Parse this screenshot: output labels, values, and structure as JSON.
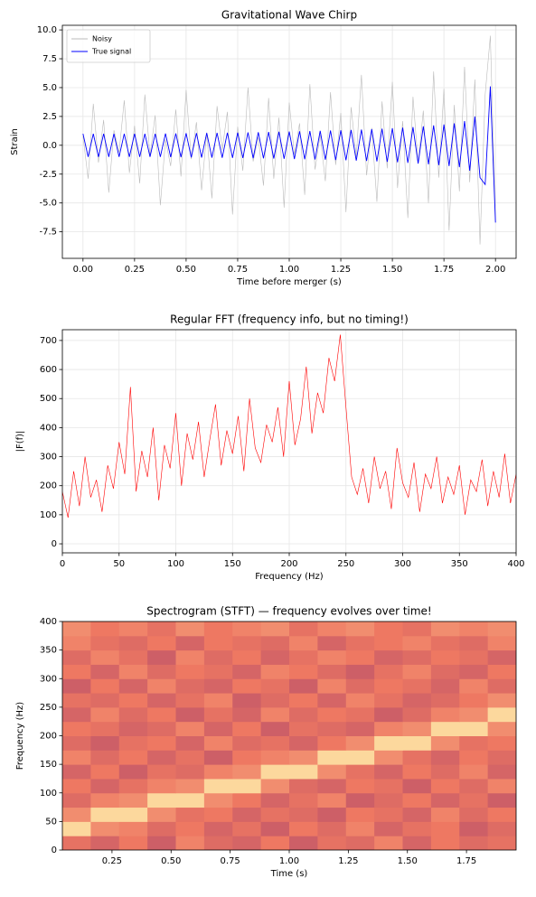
{
  "chart_data": [
    {
      "type": "line",
      "title": "Gravitational Wave Chirp",
      "xlabel": "Time before merger (s)",
      "ylabel": "Strain",
      "x": [
        0,
        0.025,
        0.05,
        0.075,
        0.1,
        0.125,
        0.15,
        0.175,
        0.2,
        0.225,
        0.25,
        0.275,
        0.3,
        0.325,
        0.35,
        0.375,
        0.4,
        0.425,
        0.45,
        0.475,
        0.5,
        0.525,
        0.55,
        0.575,
        0.6,
        0.625,
        0.65,
        0.675,
        0.7,
        0.725,
        0.75,
        0.775,
        0.8,
        0.825,
        0.85,
        0.875,
        0.9,
        0.925,
        0.95,
        0.975,
        1,
        1.025,
        1.05,
        1.075,
        1.1,
        1.125,
        1.15,
        1.175,
        1.2,
        1.225,
        1.25,
        1.275,
        1.3,
        1.325,
        1.35,
        1.375,
        1.4,
        1.425,
        1.45,
        1.475,
        1.5,
        1.525,
        1.55,
        1.575,
        1.6,
        1.625,
        1.65,
        1.675,
        1.7,
        1.725,
        1.75,
        1.775,
        1.8,
        1.825,
        1.85,
        1.875,
        1.9,
        1.925,
        1.95,
        1.975,
        2
      ],
      "series": [
        {
          "name": "Noisy",
          "color": "#bbbbbb",
          "values": [
            0.8,
            -2.9,
            3.6,
            -1.5,
            2.2,
            -4.1,
            1.3,
            -0.6,
            3.9,
            -2.4,
            1.7,
            -3.3,
            4.4,
            -0.9,
            2.6,
            -5.2,
            0.5,
            -1.8,
            3.1,
            -2.7,
            4.8,
            -1.2,
            2.0,
            -3.9,
            1.1,
            -4.6,
            3.4,
            -0.4,
            2.9,
            -6.0,
            1.6,
            -2.2,
            5.0,
            -1.4,
            0.7,
            -3.5,
            4.1,
            -2.9,
            2.4,
            -5.4,
            3.7,
            -0.8,
            1.9,
            -4.3,
            5.3,
            -2.1,
            0.9,
            -3.1,
            4.6,
            -1.7,
            2.8,
            -5.8,
            3.3,
            -1.0,
            6.1,
            -2.6,
            1.5,
            -4.9,
            3.8,
            -2.0,
            5.5,
            -3.7,
            2.1,
            -6.3,
            4.2,
            -1.6,
            3.0,
            -5.0,
            6.4,
            -2.8,
            4.9,
            -7.4,
            3.5,
            -4.0,
            6.8,
            -3.2,
            5.7,
            -8.6,
            4.4,
            9.5,
            -6.6
          ]
        },
        {
          "name": "True signal",
          "color": "#0000ff",
          "values": [
            1.0,
            -1.0,
            1.0,
            -1.0,
            1.0,
            -1.0,
            1.0,
            -1.0,
            1.0,
            -1.0,
            1.0,
            -1.0,
            1.0,
            -1.0,
            1.0,
            -1.0,
            1.02,
            -1.02,
            1.03,
            -1.03,
            1.05,
            -1.05,
            1.06,
            -1.06,
            1.07,
            -1.07,
            1.08,
            -1.08,
            1.09,
            -1.09,
            1.1,
            -1.1,
            1.12,
            -1.12,
            1.13,
            -1.13,
            1.15,
            -1.15,
            1.17,
            -1.17,
            1.19,
            -1.19,
            1.21,
            -1.21,
            1.23,
            -1.23,
            1.25,
            -1.25,
            1.28,
            -1.28,
            1.3,
            -1.3,
            1.33,
            -1.33,
            1.36,
            -1.36,
            1.4,
            -1.4,
            1.44,
            -1.44,
            1.48,
            -1.48,
            1.53,
            -1.53,
            1.58,
            -1.58,
            1.65,
            -1.65,
            1.72,
            -1.72,
            1.8,
            -1.8,
            1.9,
            -1.9,
            2.1,
            -2.2,
            2.5,
            -2.8,
            -3.4,
            5.1,
            -6.7
          ]
        }
      ],
      "xlim": [
        -0.1,
        2.1
      ],
      "ylim": [
        -9.8,
        10.4
      ],
      "xticks": [
        {
          "value": 0,
          "label": "0.00"
        },
        0.25,
        {
          "value": 0.5,
          "label": "0.50"
        },
        0.75,
        {
          "value": 1,
          "label": "1.00"
        },
        1.25,
        {
          "value": 1.5,
          "label": "1.50"
        },
        1.75,
        {
          "value": 2,
          "label": "2.00"
        }
      ],
      "yticks": [
        -7.5,
        {
          "value": -5,
          "label": "-5.0"
        },
        -2.5,
        {
          "value": 0,
          "label": "0.0"
        },
        2.5,
        {
          "value": 5,
          "label": "5.0"
        },
        7.5,
        {
          "value": 10,
          "label": "10.0"
        }
      ],
      "grid": true,
      "legend": "upper left"
    },
    {
      "type": "line",
      "title": "Regular FFT (frequency info, but no timing!)",
      "xlabel": "Frequency (Hz)",
      "ylabel": "|F(f)|",
      "x": [
        0,
        5,
        10,
        15,
        20,
        25,
        30,
        35,
        40,
        45,
        50,
        55,
        60,
        65,
        70,
        75,
        80,
        85,
        90,
        95,
        100,
        105,
        110,
        115,
        120,
        125,
        130,
        135,
        140,
        145,
        150,
        155,
        160,
        165,
        170,
        175,
        180,
        185,
        190,
        195,
        200,
        205,
        210,
        215,
        220,
        225,
        230,
        235,
        240,
        245,
        250,
        255,
        260,
        265,
        270,
        275,
        280,
        285,
        290,
        295,
        300,
        305,
        310,
        315,
        320,
        325,
        330,
        335,
        340,
        345,
        350,
        355,
        360,
        365,
        370,
        375,
        380,
        385,
        390,
        395,
        400
      ],
      "values": [
        180,
        90,
        250,
        130,
        300,
        160,
        220,
        110,
        270,
        190,
        350,
        240,
        540,
        180,
        320,
        230,
        400,
        150,
        340,
        260,
        450,
        200,
        380,
        290,
        420,
        230,
        360,
        480,
        270,
        390,
        310,
        440,
        250,
        500,
        330,
        280,
        410,
        350,
        470,
        300,
        560,
        340,
        430,
        610,
        380,
        520,
        450,
        640,
        560,
        720,
        470,
        230,
        170,
        260,
        140,
        300,
        190,
        250,
        120,
        330,
        210,
        160,
        280,
        110,
        240,
        190,
        300,
        140,
        230,
        170,
        270,
        100,
        220,
        180,
        290,
        130,
        250,
        160,
        310,
        140,
        240
      ],
      "color": "#ff0000",
      "xlim": [
        0,
        400
      ],
      "ylim": [
        -31,
        737
      ],
      "xticks": [
        0,
        50,
        100,
        150,
        200,
        250,
        300,
        350,
        400
      ],
      "yticks": [
        0,
        100,
        200,
        300,
        400,
        500,
        600,
        700
      ],
      "grid": true
    },
    {
      "type": "heatmap",
      "title": "Spectrogram (STFT) — frequency evolves over time!",
      "xlabel": "Time (s)",
      "ylabel": "Frequency (Hz)",
      "xbins": [
        0.04,
        0.16,
        0.28,
        0.4,
        0.52,
        0.64,
        0.76,
        0.88,
        1.0,
        1.12,
        1.24,
        1.36,
        1.48,
        1.6,
        1.72,
        1.84,
        1.96
      ],
      "ybins": [
        0,
        25,
        50,
        75,
        100,
        125,
        150,
        175,
        200,
        225,
        250,
        275,
        300,
        325,
        350,
        375,
        400
      ],
      "z": [
        [
          0.45,
          0.35,
          0.5,
          0.3,
          0.55,
          0.4,
          0.35,
          0.5,
          0.3,
          0.45,
          0.4,
          0.55,
          0.35,
          0.5,
          0.4,
          0.45
        ],
        [
          0.95,
          0.6,
          0.55,
          0.4,
          0.5,
          0.35,
          0.45,
          0.3,
          0.5,
          0.4,
          0.55,
          0.35,
          0.45,
          0.5,
          0.3,
          0.4
        ],
        [
          0.6,
          0.95,
          0.95,
          0.6,
          0.45,
          0.5,
          0.35,
          0.45,
          0.4,
          0.3,
          0.5,
          0.45,
          0.35,
          0.55,
          0.4,
          0.5
        ],
        [
          0.4,
          0.55,
          0.6,
          0.95,
          0.95,
          0.6,
          0.5,
          0.35,
          0.45,
          0.55,
          0.3,
          0.4,
          0.5,
          0.35,
          0.45,
          0.3
        ],
        [
          0.5,
          0.35,
          0.45,
          0.55,
          0.6,
          0.95,
          0.95,
          0.6,
          0.4,
          0.35,
          0.5,
          0.45,
          0.3,
          0.5,
          0.4,
          0.55
        ],
        [
          0.35,
          0.5,
          0.3,
          0.45,
          0.4,
          0.55,
          0.6,
          0.95,
          0.95,
          0.6,
          0.45,
          0.35,
          0.5,
          0.4,
          0.55,
          0.35
        ],
        [
          0.55,
          0.4,
          0.5,
          0.35,
          0.45,
          0.3,
          0.5,
          0.55,
          0.6,
          0.95,
          0.95,
          0.6,
          0.45,
          0.35,
          0.5,
          0.4
        ],
        [
          0.4,
          0.3,
          0.45,
          0.5,
          0.35,
          0.55,
          0.4,
          0.45,
          0.35,
          0.5,
          0.6,
          0.95,
          0.95,
          0.6,
          0.45,
          0.5
        ],
        [
          0.5,
          0.45,
          0.35,
          0.4,
          0.55,
          0.35,
          0.5,
          0.3,
          0.45,
          0.4,
          0.35,
          0.55,
          0.6,
          0.95,
          0.95,
          0.6
        ],
        [
          0.35,
          0.55,
          0.4,
          0.5,
          0.3,
          0.45,
          0.35,
          0.55,
          0.4,
          0.5,
          0.45,
          0.3,
          0.4,
          0.55,
          0.6,
          0.95
        ],
        [
          0.45,
          0.4,
          0.5,
          0.35,
          0.45,
          0.55,
          0.3,
          0.4,
          0.5,
          0.35,
          0.55,
          0.45,
          0.35,
          0.4,
          0.5,
          0.6
        ],
        [
          0.3,
          0.5,
          0.35,
          0.55,
          0.4,
          0.35,
          0.5,
          0.45,
          0.3,
          0.55,
          0.4,
          0.5,
          0.45,
          0.35,
          0.55,
          0.4
        ],
        [
          0.5,
          0.35,
          0.55,
          0.4,
          0.5,
          0.45,
          0.35,
          0.55,
          0.5,
          0.4,
          0.3,
          0.45,
          0.55,
          0.4,
          0.35,
          0.5
        ],
        [
          0.4,
          0.55,
          0.45,
          0.3,
          0.55,
          0.4,
          0.5,
          0.35,
          0.45,
          0.55,
          0.5,
          0.35,
          0.4,
          0.5,
          0.45,
          0.35
        ],
        [
          0.55,
          0.45,
          0.4,
          0.5,
          0.35,
          0.5,
          0.45,
          0.4,
          0.55,
          0.35,
          0.45,
          0.5,
          0.55,
          0.45,
          0.4,
          0.55
        ],
        [
          0.6,
          0.5,
          0.55,
          0.45,
          0.6,
          0.5,
          0.55,
          0.6,
          0.45,
          0.55,
          0.6,
          0.5,
          0.45,
          0.6,
          0.55,
          0.6
        ]
      ],
      "colormap": [
        "#9c3a6e",
        "#ee7862",
        "#fde3a3"
      ],
      "xlim": [
        0.04,
        1.96
      ],
      "ylim": [
        0,
        400
      ],
      "xticks": [
        0.25,
        {
          "value": 0.5,
          "label": "0.50"
        },
        0.75,
        {
          "value": 1,
          "label": "1.00"
        },
        1.25,
        {
          "value": 1.5,
          "label": "1.50"
        },
        1.75
      ],
      "yticks": [
        0,
        50,
        100,
        150,
        200,
        250,
        300,
        350,
        400
      ],
      "grid": false
    }
  ]
}
